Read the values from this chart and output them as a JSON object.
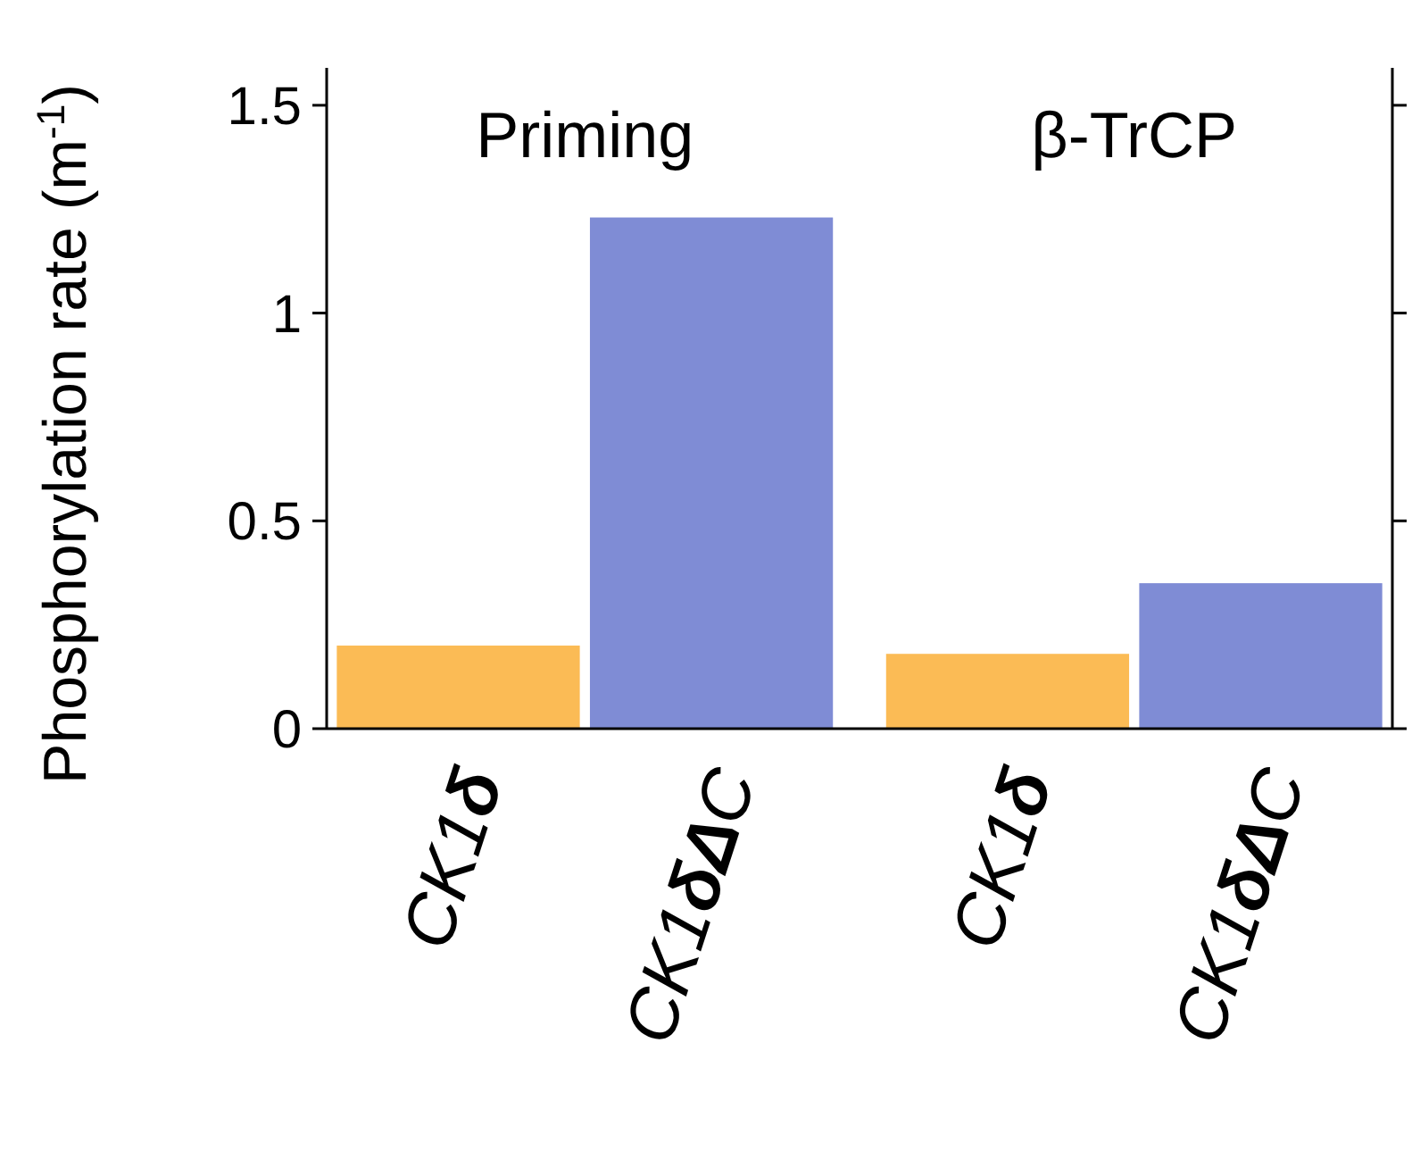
{
  "chart_data": {
    "type": "bar",
    "ylabel": "Phosphorylation rate (m$^{-1}$)",
    "categories": [
      "CK1δ",
      "CK1δΔC",
      "CK1δ",
      "CK1δΔC"
    ],
    "values": [
      0.2,
      1.23,
      0.18,
      0.35
    ],
    "colors": [
      "#fbbb55",
      "#7f8cd5",
      "#fbbb55",
      "#7f8cd5"
    ],
    "ylim": [
      0,
      1.59
    ],
    "yticks": [
      0,
      0.5,
      1,
      1.5
    ],
    "annotations": [
      "Priming",
      "β-TrCP"
    ]
  }
}
